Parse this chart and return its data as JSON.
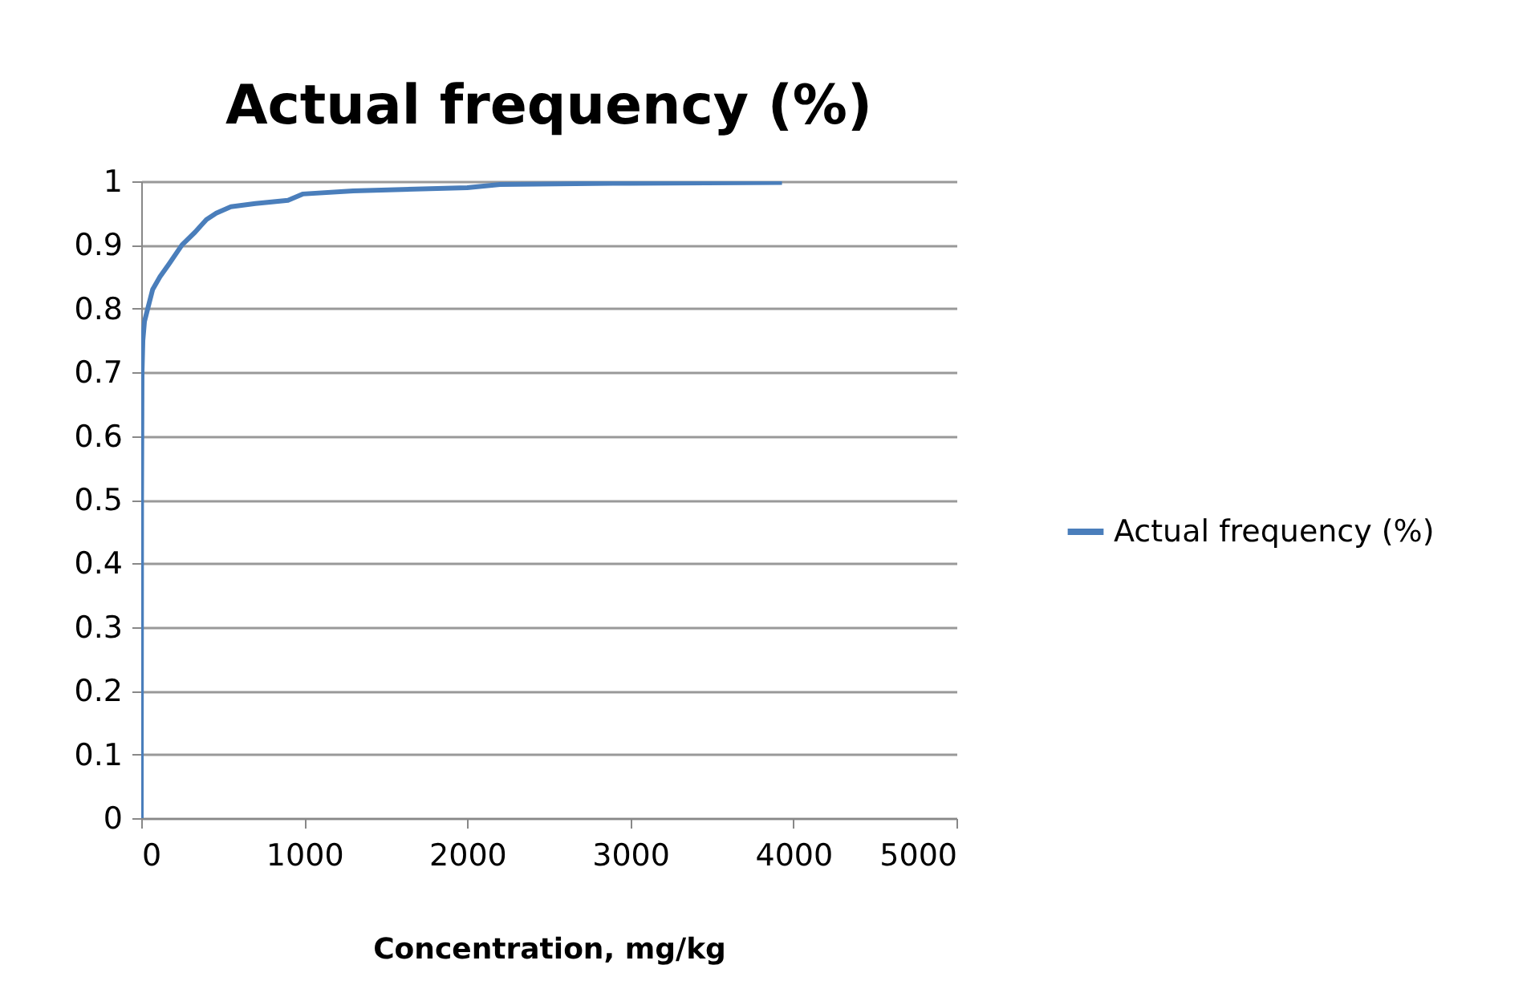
{
  "chart_data": {
    "type": "line",
    "title": "Actual frequency (%)",
    "xlabel": "Concentration, mg/kg",
    "xlim": [
      0,
      5000
    ],
    "xticks": [
      0,
      1000,
      2000,
      3000,
      4000,
      5000
    ],
    "ylim": [
      0,
      1
    ],
    "yticks": [
      0,
      0.1,
      0.2,
      0.3,
      0.4,
      0.5,
      0.6,
      0.7,
      0.8,
      0.9,
      1
    ],
    "grid": "y",
    "legend": "right",
    "series": [
      {
        "name": "Actual frequency (%)",
        "color": "#4a7ebb",
        "x": [
          0,
          2,
          5,
          10,
          20,
          40,
          70,
          115,
          170,
          250,
          330,
          400,
          460,
          550,
          700,
          900,
          990,
          1300,
          2000,
          2200,
          3000,
          3930
        ],
        "values": [
          0,
          0.5,
          0.7,
          0.75,
          0.78,
          0.8,
          0.83,
          0.85,
          0.87,
          0.9,
          0.92,
          0.94,
          0.95,
          0.96,
          0.965,
          0.97,
          0.98,
          0.985,
          0.99,
          0.995,
          0.997,
          0.998
        ]
      }
    ]
  }
}
